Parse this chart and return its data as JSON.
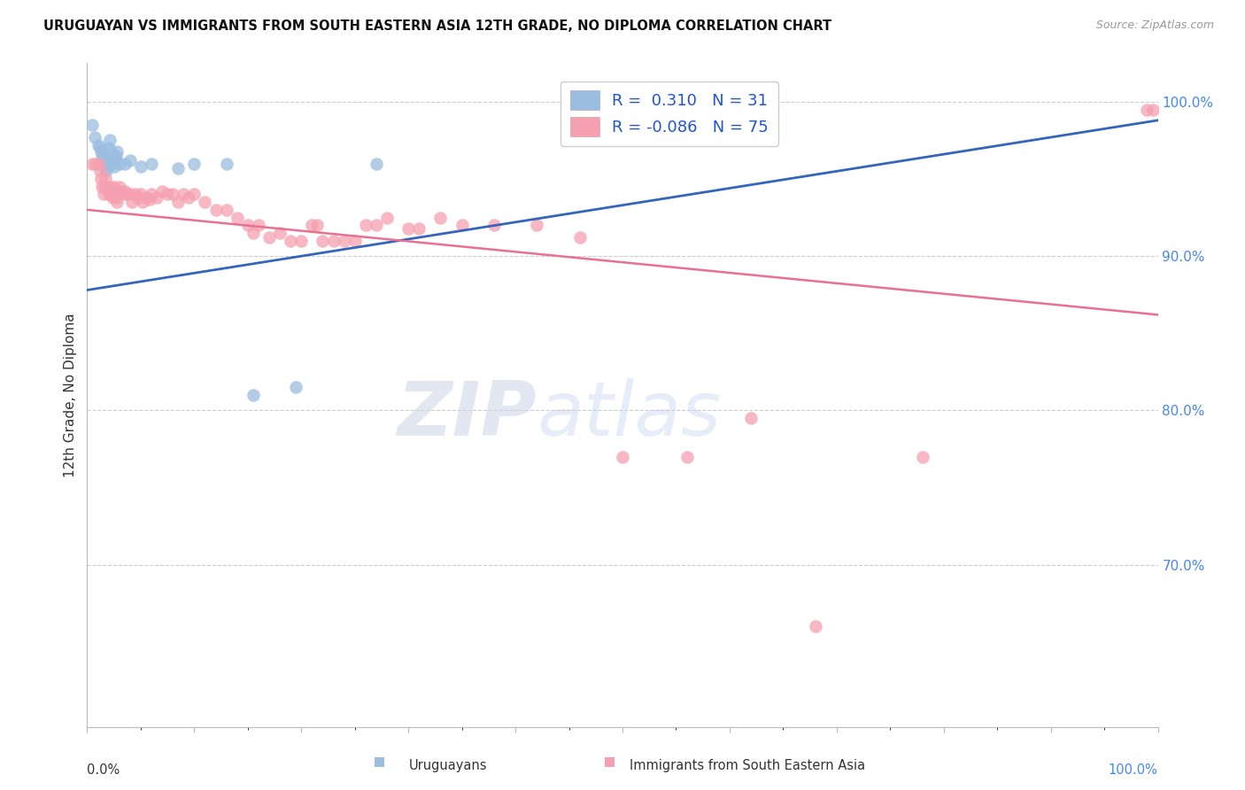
{
  "title": "URUGUAYAN VS IMMIGRANTS FROM SOUTH EASTERN ASIA 12TH GRADE, NO DIPLOMA CORRELATION CHART",
  "source": "Source: ZipAtlas.com",
  "ylabel": "12th Grade, No Diploma",
  "xmin": 0.0,
  "xmax": 1.0,
  "ymin": 0.595,
  "ymax": 1.025,
  "right_yticks": [
    1.0,
    0.9,
    0.8,
    0.7
  ],
  "right_ytick_labels": [
    "100.0%",
    "90.0%",
    "80.0%",
    "70.0%"
  ],
  "blue_color": "#9abde0",
  "pink_color": "#f5a0b0",
  "blue_line_color": "#3366bb",
  "pink_line_color": "#e87090",
  "blue_R": 0.31,
  "blue_N": 31,
  "pink_R": -0.086,
  "pink_N": 75,
  "legend_label_blue": "Uruguayans",
  "legend_label_pink": "Immigrants from South Eastern Asia",
  "watermark_zip": "ZIP",
  "watermark_atlas": "atlas",
  "blue_points_x": [
    0.005,
    0.007,
    0.01,
    0.012,
    0.013,
    0.014,
    0.015,
    0.016,
    0.017,
    0.018,
    0.019,
    0.02,
    0.021,
    0.022,
    0.023,
    0.024,
    0.025,
    0.026,
    0.027,
    0.028,
    0.03,
    0.035,
    0.04,
    0.05,
    0.06,
    0.085,
    0.1,
    0.13,
    0.155,
    0.195,
    0.27
  ],
  "blue_points_y": [
    0.985,
    0.977,
    0.972,
    0.97,
    0.968,
    0.965,
    0.963,
    0.96,
    0.957,
    0.955,
    0.963,
    0.97,
    0.975,
    0.968,
    0.962,
    0.96,
    0.958,
    0.963,
    0.965,
    0.968,
    0.96,
    0.96,
    0.962,
    0.958,
    0.96,
    0.957,
    0.96,
    0.96,
    0.81,
    0.815,
    0.96
  ],
  "pink_points_x": [
    0.005,
    0.008,
    0.01,
    0.012,
    0.013,
    0.014,
    0.015,
    0.016,
    0.017,
    0.018,
    0.02,
    0.021,
    0.022,
    0.023,
    0.024,
    0.025,
    0.026,
    0.027,
    0.028,
    0.03,
    0.032,
    0.034,
    0.035,
    0.037,
    0.04,
    0.042,
    0.045,
    0.048,
    0.05,
    0.052,
    0.055,
    0.058,
    0.06,
    0.065,
    0.07,
    0.075,
    0.08,
    0.085,
    0.09,
    0.095,
    0.1,
    0.11,
    0.12,
    0.13,
    0.14,
    0.15,
    0.155,
    0.16,
    0.17,
    0.18,
    0.19,
    0.2,
    0.21,
    0.215,
    0.22,
    0.23,
    0.24,
    0.25,
    0.26,
    0.27,
    0.28,
    0.3,
    0.31,
    0.33,
    0.35,
    0.38,
    0.42,
    0.46,
    0.5,
    0.56,
    0.62,
    0.68,
    0.78,
    0.99,
    0.995
  ],
  "pink_points_y": [
    0.96,
    0.96,
    0.96,
    0.955,
    0.95,
    0.945,
    0.94,
    0.945,
    0.95,
    0.945,
    0.94,
    0.94,
    0.945,
    0.94,
    0.938,
    0.945,
    0.942,
    0.938,
    0.935,
    0.945,
    0.942,
    0.94,
    0.942,
    0.94,
    0.94,
    0.935,
    0.94,
    0.938,
    0.94,
    0.935,
    0.938,
    0.937,
    0.94,
    0.938,
    0.942,
    0.94,
    0.94,
    0.935,
    0.94,
    0.938,
    0.94,
    0.935,
    0.93,
    0.93,
    0.925,
    0.92,
    0.915,
    0.92,
    0.912,
    0.915,
    0.91,
    0.91,
    0.92,
    0.92,
    0.91,
    0.91,
    0.91,
    0.91,
    0.92,
    0.92,
    0.925,
    0.918,
    0.918,
    0.925,
    0.92,
    0.92,
    0.92,
    0.912,
    0.77,
    0.77,
    0.795,
    0.66,
    0.77,
    0.995,
    0.995
  ]
}
